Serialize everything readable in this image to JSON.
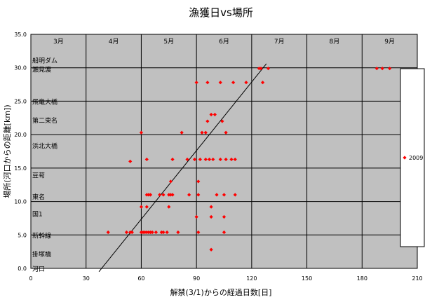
{
  "chart_data": {
    "type": "scatter",
    "title": "漁獲日vs場所",
    "xlabel": "解禁(3/1)からの経過日数[日]",
    "ylabel": "場所(河口からの距離[km])",
    "xlim": [
      0,
      210
    ],
    "ylim": [
      0,
      35
    ],
    "x_ticks": [
      "0",
      "30",
      "60",
      "90",
      "120",
      "150",
      "180",
      "210"
    ],
    "y_ticks": [
      "0.0",
      "5.0",
      "10.0",
      "15.0",
      "20.0",
      "25.0",
      "30.0",
      "35.0"
    ],
    "months": [
      {
        "label": "3月",
        "x": 15
      },
      {
        "label": "4月",
        "x": 45
      },
      {
        "label": "5月",
        "x": 75
      },
      {
        "label": "6月",
        "x": 105
      },
      {
        "label": "7月",
        "x": 135
      },
      {
        "label": "8月",
        "x": 165
      },
      {
        "label": "9月",
        "x": 195
      }
    ],
    "places": [
      {
        "label": "船明ダム",
        "y": 31.2
      },
      {
        "label": "瀬見渡",
        "y": 29.8
      },
      {
        "label": "飛竜大橋",
        "y": 25.0
      },
      {
        "label": "第二東名",
        "y": 22.2
      },
      {
        "label": "浜北大橋",
        "y": 18.4
      },
      {
        "label": "豆苟",
        "y": 14.0
      },
      {
        "label": "東名",
        "y": 10.8
      },
      {
        "label": "国1",
        "y": 8.2
      },
      {
        "label": "新幹線",
        "y": 5.0
      },
      {
        "label": "掛塚橋",
        "y": 2.2
      },
      {
        "label": "河口",
        "y": 0.0
      }
    ],
    "grid": true,
    "legend_position": "right",
    "series": [
      {
        "name": "2009",
        "color": "#ff0000",
        "points": [
          [
            42,
            5.4
          ],
          [
            52,
            5.4
          ],
          [
            54,
            5.4
          ],
          [
            55,
            5.4
          ],
          [
            60,
            5.4
          ],
          [
            61,
            5.4
          ],
          [
            62,
            5.4
          ],
          [
            63,
            5.4
          ],
          [
            64,
            5.4
          ],
          [
            65,
            5.4
          ],
          [
            66,
            5.4
          ],
          [
            68,
            5.4
          ],
          [
            71,
            5.4
          ],
          [
            72,
            5.4
          ],
          [
            74,
            5.4
          ],
          [
            80,
            5.4
          ],
          [
            91,
            5.4
          ],
          [
            105,
            5.4
          ],
          [
            54,
            16.0
          ],
          [
            60,
            9.2
          ],
          [
            60,
            20.3
          ],
          [
            63,
            16.3
          ],
          [
            63,
            9.2
          ],
          [
            63,
            11.0
          ],
          [
            64,
            11.0
          ],
          [
            65,
            11.0
          ],
          [
            70,
            11.0
          ],
          [
            72,
            11.0
          ],
          [
            75,
            11.0
          ],
          [
            76,
            11.0
          ],
          [
            77,
            11.0
          ],
          [
            75,
            9.2
          ],
          [
            76,
            13.0
          ],
          [
            77,
            16.3
          ],
          [
            82,
            20.3
          ],
          [
            85,
            16.3
          ],
          [
            86,
            11.0
          ],
          [
            89,
            16.3
          ],
          [
            90,
            27.8
          ],
          [
            90,
            7.7
          ],
          [
            91,
            11.0
          ],
          [
            91,
            13.0
          ],
          [
            92,
            16.3
          ],
          [
            93,
            20.3
          ],
          [
            95,
            20.3
          ],
          [
            95,
            16.3
          ],
          [
            96,
            22.0
          ],
          [
            96,
            27.8
          ],
          [
            97,
            16.3
          ],
          [
            98,
            23.0
          ],
          [
            98,
            9.2
          ],
          [
            98,
            7.7
          ],
          [
            99,
            16.3
          ],
          [
            100,
            23.0
          ],
          [
            101,
            11.0
          ],
          [
            103,
            16.3
          ],
          [
            103,
            27.8
          ],
          [
            104,
            22.0
          ],
          [
            105,
            11.0
          ],
          [
            105,
            7.7
          ],
          [
            106,
            20.3
          ],
          [
            106,
            16.3
          ],
          [
            98,
            2.8
          ],
          [
            109,
            16.3
          ],
          [
            110,
            27.8
          ],
          [
            111,
            11.0
          ],
          [
            111,
            16.3
          ],
          [
            117,
            27.8
          ],
          [
            124,
            29.9
          ],
          [
            125,
            29.9
          ],
          [
            126,
            27.8
          ],
          [
            129,
            29.9
          ],
          [
            188,
            29.9
          ],
          [
            191,
            29.9
          ],
          [
            195,
            29.9
          ]
        ]
      }
    ],
    "trendline": {
      "x": [
        37,
        128
      ],
      "y": [
        -0.5,
        30.6
      ]
    }
  }
}
